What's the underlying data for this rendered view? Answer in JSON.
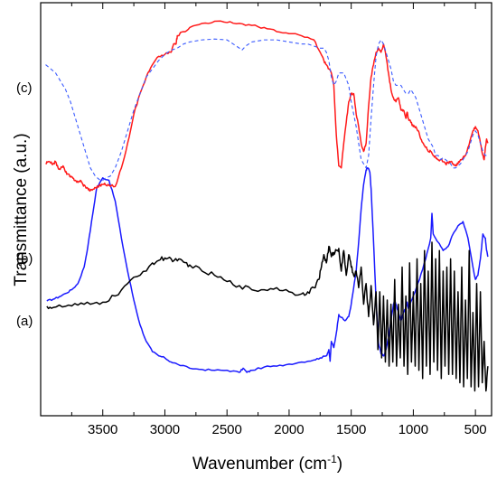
{
  "chart_data": {
    "type": "line",
    "xlabel": "Wavenumber (cm",
    "xlabel_sup": "-1",
    "xlabel_end": ")",
    "ylabel": "Transmittance (a.u.)",
    "xlim": [
      4000,
      370
    ],
    "x_reversed": true,
    "ylim": [
      0,
      1
    ],
    "y_ticks_labeled": false,
    "grid": false,
    "x_ticks": [
      3500,
      3000,
      2500,
      2000,
      1500,
      1000,
      500
    ],
    "x_tick_labels": [
      "3500",
      "3000",
      "2500",
      "2000",
      "1500",
      "1000",
      "500"
    ],
    "annotations": [
      "(a)",
      "(b)",
      "(c)"
    ],
    "colors": {
      "a": "#1a1aff",
      "b": "#000000",
      "c": "#ff1a1a",
      "c_dashed": "#3b5bff"
    },
    "series": [
      {
        "key": "a",
        "color": "#1a1aff",
        "dash": false,
        "noise": 0.002,
        "x": [
          3950,
          3900,
          3850,
          3800,
          3750,
          3700,
          3650,
          3620,
          3580,
          3550,
          3500,
          3450,
          3400,
          3350,
          3300,
          3250,
          3200,
          3150,
          3100,
          3050,
          3000,
          2950,
          2900,
          2800,
          2700,
          2600,
          2500,
          2400,
          2370,
          2340,
          2300,
          2200,
          2100,
          2000,
          1900,
          1800,
          1750,
          1700,
          1680,
          1670,
          1660,
          1640,
          1620,
          1600,
          1580,
          1550,
          1520,
          1500,
          1480,
          1460,
          1440,
          1420,
          1400,
          1380,
          1370,
          1360,
          1350,
          1340,
          1320,
          1300,
          1280,
          1260,
          1240,
          1230,
          1220,
          1200,
          1180,
          1160,
          1150,
          1140,
          1120,
          1100,
          1080,
          1060,
          1050,
          1040,
          1000,
          950,
          900,
          860,
          850,
          840,
          800,
          760,
          720,
          680,
          640,
          600,
          560,
          520,
          500,
          480,
          460,
          440,
          420,
          410,
          400
        ],
        "y": [
          0.278,
          0.282,
          0.288,
          0.296,
          0.305,
          0.32,
          0.36,
          0.41,
          0.49,
          0.55,
          0.576,
          0.57,
          0.52,
          0.43,
          0.35,
          0.28,
          0.22,
          0.18,
          0.155,
          0.145,
          0.14,
          0.13,
          0.125,
          0.115,
          0.112,
          0.11,
          0.11,
          0.105,
          0.115,
          0.105,
          0.11,
          0.118,
          0.12,
          0.125,
          0.13,
          0.135,
          0.14,
          0.145,
          0.16,
          0.132,
          0.18,
          0.165,
          0.2,
          0.245,
          0.238,
          0.23,
          0.24,
          0.27,
          0.31,
          0.35,
          0.42,
          0.5,
          0.56,
          0.595,
          0.6,
          0.598,
          0.59,
          0.55,
          0.42,
          0.28,
          0.175,
          0.15,
          0.145,
          0.15,
          0.16,
          0.19,
          0.23,
          0.27,
          0.28,
          0.27,
          0.25,
          0.23,
          0.25,
          0.26,
          0.275,
          0.26,
          0.29,
          0.33,
          0.38,
          0.43,
          0.49,
          0.44,
          0.42,
          0.4,
          0.41,
          0.44,
          0.46,
          0.47,
          0.43,
          0.36,
          0.33,
          0.34,
          0.38,
          0.44,
          0.43,
          0.4,
          0.385
        ]
      },
      {
        "key": "b",
        "color": "#000000",
        "dash": false,
        "noise": 0.006,
        "x": [
          3950,
          3900,
          3800,
          3700,
          3600,
          3500,
          3400,
          3300,
          3200,
          3100,
          3050,
          3000,
          2950,
          2900,
          2850,
          2800,
          2700,
          2600,
          2500,
          2400,
          2300,
          2200,
          2100,
          2000,
          1900,
          1850,
          1800,
          1760,
          1740,
          1720,
          1700,
          1680,
          1660,
          1640,
          1620,
          1600,
          1580,
          1560,
          1540,
          1520,
          1500,
          1480,
          1460,
          1440,
          1420,
          1400,
          1380,
          1360,
          1340,
          1320,
          1300,
          1285,
          1270,
          1255,
          1240,
          1225,
          1210,
          1195,
          1180,
          1165,
          1150,
          1135,
          1120,
          1105,
          1090,
          1075,
          1060,
          1045,
          1030,
          1015,
          1000,
          985,
          970,
          955,
          940,
          925,
          910,
          895,
          880,
          865,
          850,
          835,
          820,
          805,
          790,
          775,
          760,
          745,
          730,
          715,
          700,
          685,
          670,
          655,
          640,
          625,
          610,
          595,
          580,
          565,
          550,
          535,
          520,
          505,
          490,
          475,
          460,
          445,
          430,
          415,
          400
        ],
        "y": [
          0.265,
          0.262,
          0.265,
          0.268,
          0.27,
          0.275,
          0.29,
          0.32,
          0.34,
          0.37,
          0.376,
          0.382,
          0.38,
          0.375,
          0.372,
          0.365,
          0.35,
          0.34,
          0.325,
          0.315,
          0.305,
          0.305,
          0.31,
          0.3,
          0.295,
          0.3,
          0.31,
          0.33,
          0.36,
          0.39,
          0.37,
          0.41,
          0.385,
          0.395,
          0.4,
          0.405,
          0.35,
          0.4,
          0.34,
          0.39,
          0.36,
          0.34,
          0.35,
          0.31,
          0.36,
          0.27,
          0.32,
          0.24,
          0.315,
          0.22,
          0.3,
          0.16,
          0.3,
          0.14,
          0.29,
          0.13,
          0.28,
          0.12,
          0.27,
          0.13,
          0.33,
          0.12,
          0.27,
          0.14,
          0.36,
          0.12,
          0.29,
          0.1,
          0.37,
          0.13,
          0.3,
          0.12,
          0.38,
          0.11,
          0.32,
          0.09,
          0.4,
          0.12,
          0.35,
          0.1,
          0.42,
          0.13,
          0.38,
          0.11,
          0.4,
          0.09,
          0.35,
          0.12,
          0.36,
          0.1,
          0.38,
          0.1,
          0.35,
          0.09,
          0.3,
          0.08,
          0.36,
          0.07,
          0.28,
          0.09,
          0.4,
          0.07,
          0.25,
          0.06,
          0.32,
          0.07,
          0.3,
          0.08,
          0.18,
          0.06,
          0.12
        ]
      },
      {
        "key": "c",
        "color": "#ff1a1a",
        "dash": false,
        "noise": 0.003,
        "x": [
          3960,
          3940,
          3920,
          3900,
          3880,
          3860,
          3840,
          3820,
          3800,
          3780,
          3760,
          3740,
          3720,
          3700,
          3680,
          3660,
          3640,
          3620,
          3600,
          3580,
          3560,
          3540,
          3520,
          3500,
          3480,
          3450,
          3400,
          3350,
          3300,
          3250,
          3200,
          3150,
          3100,
          3050,
          3000,
          2950,
          2930,
          2910,
          2900,
          2850,
          2800,
          2700,
          2600,
          2500,
          2400,
          2300,
          2200,
          2100,
          2000,
          1900,
          1800,
          1750,
          1720,
          1700,
          1680,
          1660,
          1640,
          1620,
          1600,
          1580,
          1560,
          1540,
          1520,
          1500,
          1480,
          1460,
          1440,
          1420,
          1400,
          1380,
          1360,
          1340,
          1320,
          1300,
          1280,
          1260,
          1240,
          1220,
          1200,
          1180,
          1160,
          1140,
          1120,
          1100,
          1080,
          1060,
          1050,
          1040,
          1020,
          1000,
          980,
          960,
          940,
          920,
          900,
          880,
          860,
          840,
          820,
          800,
          780,
          760,
          740,
          720,
          700,
          680,
          660,
          640,
          620,
          600,
          580,
          560,
          540,
          520,
          500,
          480,
          460,
          440,
          430,
          420,
          410,
          400
        ],
        "y": [
          0.61,
          0.615,
          0.612,
          0.61,
          0.615,
          0.6,
          0.598,
          0.605,
          0.59,
          0.585,
          0.578,
          0.575,
          0.57,
          0.565,
          0.57,
          0.56,
          0.555,
          0.55,
          0.545,
          0.548,
          0.552,
          0.555,
          0.558,
          0.56,
          0.56,
          0.558,
          0.555,
          0.6,
          0.66,
          0.73,
          0.78,
          0.82,
          0.85,
          0.87,
          0.875,
          0.88,
          0.9,
          0.9,
          0.92,
          0.93,
          0.94,
          0.95,
          0.955,
          0.952,
          0.95,
          0.945,
          0.94,
          0.93,
          0.925,
          0.92,
          0.91,
          0.88,
          0.86,
          0.85,
          0.84,
          0.83,
          0.8,
          0.68,
          0.605,
          0.6,
          0.66,
          0.71,
          0.76,
          0.78,
          0.78,
          0.73,
          0.7,
          0.66,
          0.64,
          0.66,
          0.75,
          0.82,
          0.85,
          0.88,
          0.89,
          0.88,
          0.9,
          0.87,
          0.83,
          0.79,
          0.77,
          0.76,
          0.77,
          0.74,
          0.74,
          0.72,
          0.735,
          0.72,
          0.71,
          0.7,
          0.7,
          0.69,
          0.67,
          0.66,
          0.65,
          0.64,
          0.64,
          0.63,
          0.625,
          0.62,
          0.62,
          0.615,
          0.61,
          0.612,
          0.615,
          0.61,
          0.605,
          0.61,
          0.62,
          0.625,
          0.63,
          0.65,
          0.67,
          0.69,
          0.7,
          0.69,
          0.66,
          0.63,
          0.62,
          0.65,
          0.67,
          0.66
        ]
      },
      {
        "key": "c_dashed",
        "color": "#3b5bff",
        "dash": true,
        "noise": 0,
        "x": [
          3960,
          3920,
          3880,
          3840,
          3800,
          3760,
          3720,
          3680,
          3640,
          3600,
          3560,
          3520,
          3500,
          3480,
          3440,
          3400,
          3350,
          3300,
          3250,
          3200,
          3150,
          3100,
          3050,
          3000,
          2950,
          2900,
          2850,
          2800,
          2700,
          2600,
          2500,
          2450,
          2400,
          2380,
          2350,
          2300,
          2200,
          2100,
          2000,
          1900,
          1850,
          1800,
          1750,
          1720,
          1700,
          1680,
          1660,
          1640,
          1620,
          1600,
          1560,
          1520,
          1500,
          1480,
          1460,
          1440,
          1420,
          1400,
          1380,
          1360,
          1340,
          1320,
          1300,
          1280,
          1260,
          1240,
          1220,
          1200,
          1180,
          1160,
          1140,
          1120,
          1100,
          1080,
          1060,
          1040,
          1020,
          1000,
          980,
          960,
          940,
          920,
          900,
          880,
          860,
          840,
          820,
          800,
          780,
          760,
          740,
          720,
          700,
          680,
          660,
          640,
          620,
          600,
          580,
          560,
          540,
          520,
          500,
          480,
          460,
          440,
          420,
          400
        ],
        "y": [
          0.85,
          0.84,
          0.83,
          0.81,
          0.79,
          0.76,
          0.72,
          0.68,
          0.64,
          0.6,
          0.58,
          0.57,
          0.57,
          0.575,
          0.58,
          0.6,
          0.64,
          0.69,
          0.74,
          0.78,
          0.82,
          0.84,
          0.86,
          0.875,
          0.885,
          0.89,
          0.9,
          0.905,
          0.91,
          0.912,
          0.91,
          0.9,
          0.89,
          0.885,
          0.895,
          0.905,
          0.91,
          0.91,
          0.905,
          0.9,
          0.9,
          0.895,
          0.89,
          0.89,
          0.88,
          0.86,
          0.82,
          0.8,
          0.81,
          0.83,
          0.83,
          0.8,
          0.76,
          0.73,
          0.7,
          0.66,
          0.62,
          0.61,
          0.6,
          0.63,
          0.72,
          0.8,
          0.87,
          0.9,
          0.91,
          0.9,
          0.88,
          0.86,
          0.84,
          0.81,
          0.8,
          0.8,
          0.8,
          0.79,
          0.78,
          0.78,
          0.79,
          0.78,
          0.77,
          0.75,
          0.73,
          0.71,
          0.69,
          0.67,
          0.66,
          0.65,
          0.63,
          0.63,
          0.62,
          0.625,
          0.62,
          0.615,
          0.61,
          0.6,
          0.6,
          0.605,
          0.61,
          0.62,
          0.63,
          0.64,
          0.66,
          0.68,
          0.69,
          0.68,
          0.66,
          0.64,
          0.63,
          0.63
        ]
      }
    ]
  }
}
